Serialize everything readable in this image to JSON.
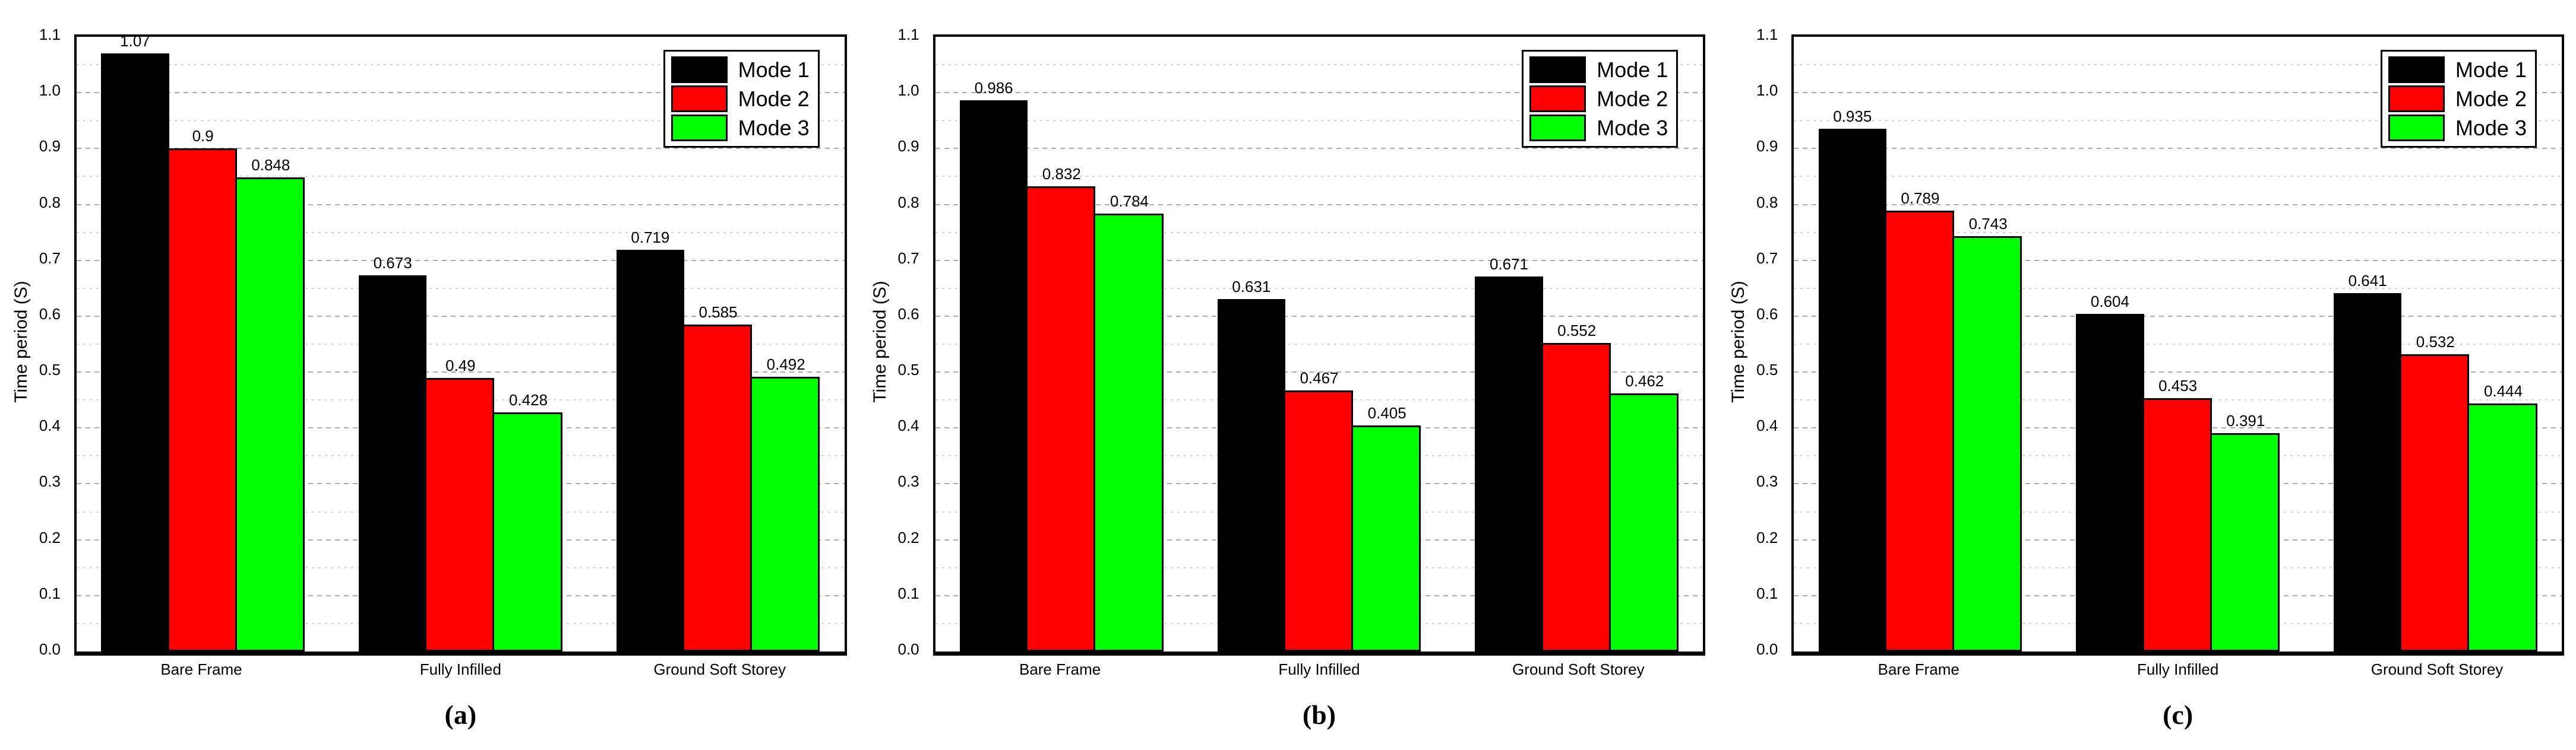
{
  "figure": {
    "background": "#ffffff",
    "grid": {
      "major_color": "#ababab",
      "minor_color": "#d2d2d2",
      "frame_color": "#000000"
    }
  },
  "axis": {
    "ylabel": "Time period (S)",
    "ylim": [
      0,
      1.1
    ],
    "ytick_step": 0.1,
    "grid_step": 0.05,
    "yticks": [
      "0.0",
      "0.1",
      "0.2",
      "0.3",
      "0.4",
      "0.5",
      "0.6",
      "0.7",
      "0.8",
      "0.9",
      "1.0",
      "1.1"
    ]
  },
  "chart_data": [
    {
      "type": "bar",
      "panel_label": "(a)",
      "title": "",
      "xlabel": "",
      "ylabel": "Time period (S)",
      "ylim": [
        0,
        1.1
      ],
      "grid": true,
      "legend_position": "top-right",
      "categories": [
        "Bare Frame",
        "Fully Infilled",
        "Ground Soft Storey"
      ],
      "series": [
        {
          "name": "Mode 1",
          "color": "#000000",
          "values": [
            1.07,
            0.673,
            0.719
          ],
          "labels": [
            "1.07",
            "0.673",
            "0.719"
          ]
        },
        {
          "name": "Mode 2",
          "color": "#ff0000",
          "values": [
            0.9,
            0.49,
            0.585
          ],
          "labels": [
            "0.9",
            "0.49",
            "0.585"
          ]
        },
        {
          "name": "Mode 3",
          "color": "#00ff00",
          "values": [
            0.848,
            0.428,
            0.492
          ],
          "labels": [
            "0.848",
            "0.428",
            "0.492"
          ]
        }
      ]
    },
    {
      "type": "bar",
      "panel_label": "(b)",
      "title": "",
      "xlabel": "",
      "ylabel": "Time period (S)",
      "ylim": [
        0,
        1.1
      ],
      "grid": true,
      "legend_position": "top-right",
      "categories": [
        "Bare Frame",
        "Fully Infilled",
        "Ground Soft Storey"
      ],
      "series": [
        {
          "name": "Mode 1",
          "color": "#000000",
          "values": [
            0.986,
            0.631,
            0.671
          ],
          "labels": [
            "0.986",
            "0.631",
            "0.671"
          ]
        },
        {
          "name": "Mode 2",
          "color": "#ff0000",
          "values": [
            0.832,
            0.467,
            0.552
          ],
          "labels": [
            "0.832",
            "0.467",
            "0.552"
          ]
        },
        {
          "name": "Mode 3",
          "color": "#00ff00",
          "values": [
            0.784,
            0.405,
            0.462
          ],
          "labels": [
            "0.784",
            "0.405",
            "0.462"
          ]
        }
      ]
    },
    {
      "type": "bar",
      "panel_label": "(c)",
      "title": "",
      "xlabel": "",
      "ylabel": "Time period (S)",
      "ylim": [
        0,
        1.1
      ],
      "grid": true,
      "legend_position": "top-right",
      "categories": [
        "Bare Frame",
        "Fully Infilled",
        "Ground Soft Storey"
      ],
      "series": [
        {
          "name": "Mode 1",
          "color": "#000000",
          "values": [
            0.935,
            0.604,
            0.641
          ],
          "labels": [
            "0.935",
            "0.604",
            "0.641"
          ]
        },
        {
          "name": "Mode 2",
          "color": "#ff0000",
          "values": [
            0.789,
            0.453,
            0.532
          ],
          "labels": [
            "0.789",
            "0.453",
            "0.532"
          ]
        },
        {
          "name": "Mode 3",
          "color": "#00ff00",
          "values": [
            0.743,
            0.391,
            0.444
          ],
          "labels": [
            "0.743",
            "0.391",
            "0.444"
          ]
        }
      ]
    }
  ],
  "layout_fractions": {
    "side_margin_pct": 3.2,
    "group_width_pct": 26.5,
    "group_gap_pct": 7.05
  }
}
